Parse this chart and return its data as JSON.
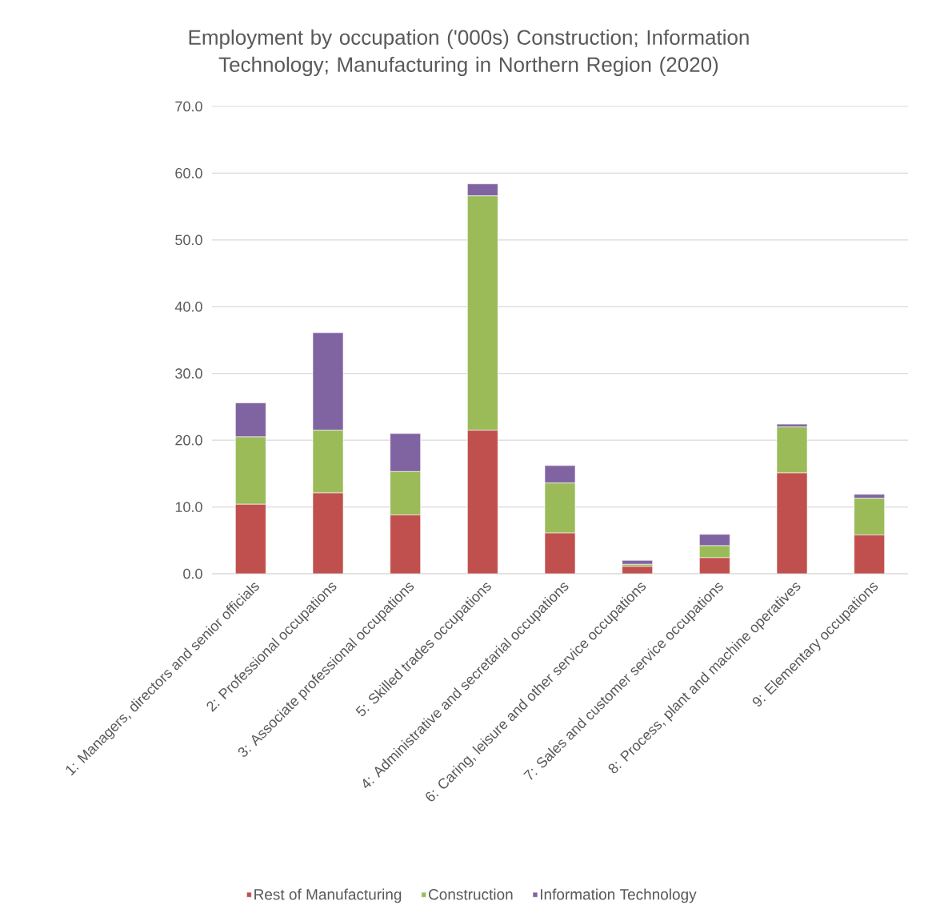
{
  "chart_data": {
    "type": "bar",
    "stacked": true,
    "title": "Employment  by occupation ('000s) Construction; Information Technology; Manufacturing in Northern Region (2020)",
    "categories": [
      "1: Managers, directors and senior officials",
      "2: Professional occupations",
      "3: Associate professional occupations",
      "5: Skilled trades occupations",
      "4: Administrative and secretarial occupations",
      "6: Caring, leisure and other service occupations",
      "7: Sales and customer service occupations",
      "8: Process, plant and machine operatives",
      "9: Elementary occupations"
    ],
    "series": [
      {
        "name": "Rest of Manufacturing",
        "color": "#c0504d",
        "values": [
          10.4,
          12.1,
          8.8,
          21.5,
          6.1,
          1.1,
          2.4,
          15.1,
          5.8
        ]
      },
      {
        "name": "Construction",
        "color": "#9bbb59",
        "values": [
          10.1,
          9.4,
          6.5,
          35.1,
          7.5,
          0.3,
          1.8,
          6.9,
          5.5
        ]
      },
      {
        "name": "Information Technology",
        "color": "#8064a2",
        "values": [
          5.1,
          14.6,
          5.7,
          1.8,
          2.6,
          0.6,
          1.7,
          0.4,
          0.6
        ]
      }
    ],
    "ylim": [
      0,
      70
    ],
    "yticks": [
      {
        "value": 0,
        "label": "0.0"
      },
      {
        "value": 10,
        "label": "10.0"
      },
      {
        "value": 20,
        "label": "20.0"
      },
      {
        "value": 30,
        "label": "30.0"
      },
      {
        "value": 40,
        "label": "40.0"
      },
      {
        "value": 50,
        "label": "50.0"
      },
      {
        "value": 60,
        "label": "60.0"
      },
      {
        "value": 70,
        "label": "70.0"
      }
    ],
    "grid": "y",
    "legend": "bottom"
  }
}
